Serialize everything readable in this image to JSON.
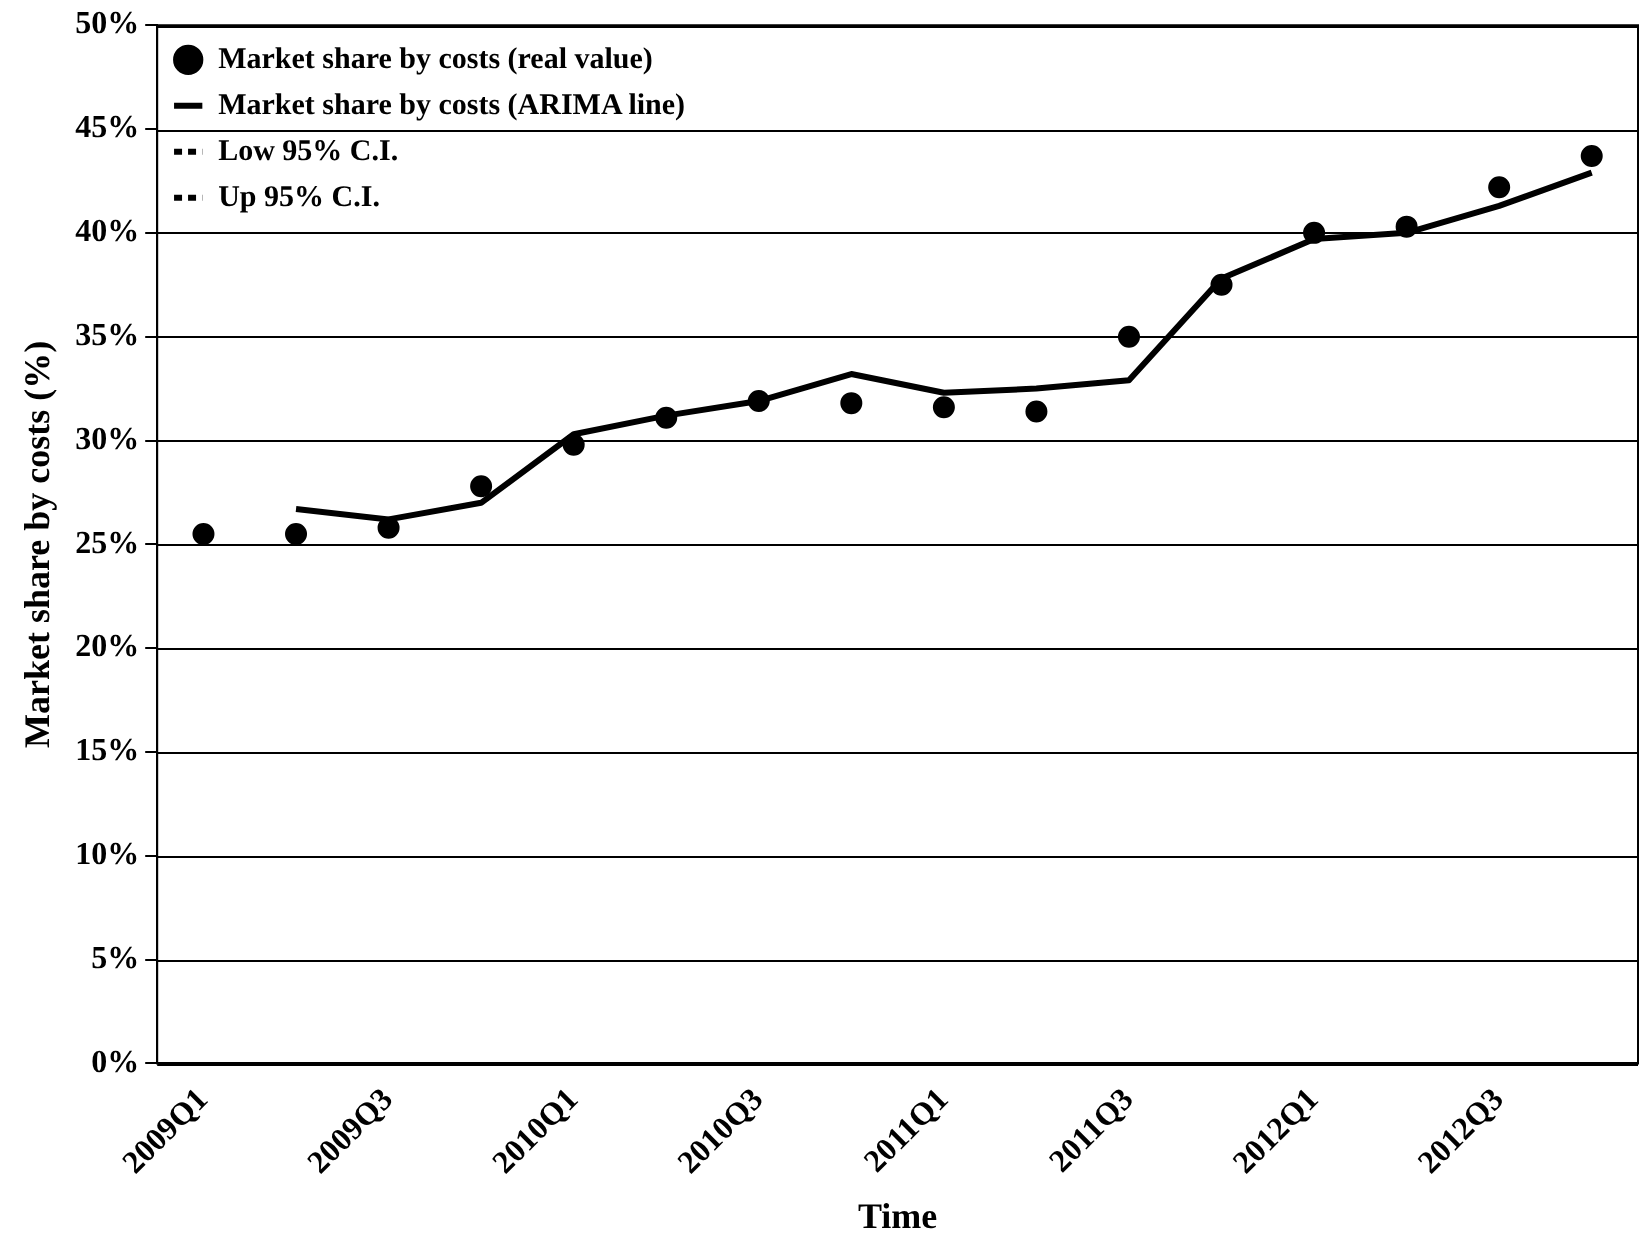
{
  "chart_data": {
    "type": "line",
    "xlabel": "Time",
    "ylabel": "Market share by costs (%)",
    "categories": [
      "2009Q1",
      null,
      "2009Q3",
      null,
      "2010Q1",
      null,
      "2010Q3",
      null,
      "2011Q1",
      null,
      "2011Q3",
      null,
      "2012Q1",
      null,
      "2012Q3",
      null
    ],
    "series": [
      {
        "name": "Market share by costs (real value)",
        "type": "scatter",
        "marker": "circle",
        "color": "#000000",
        "values": [
          25.5,
          25.5,
          25.8,
          27.8,
          29.8,
          31.1,
          31.9,
          31.8,
          31.6,
          31.4,
          35.0,
          37.5,
          40.0,
          40.3,
          42.2,
          43.7
        ]
      },
      {
        "name": "Market share by costs (ARIMA line)",
        "type": "line",
        "line_style": "solid",
        "color": "#000000",
        "values": [
          null,
          26.7,
          26.2,
          27.0,
          30.3,
          31.2,
          31.9,
          33.2,
          32.3,
          32.5,
          32.9,
          37.8,
          39.7,
          40.0,
          41.3,
          42.9
        ]
      },
      {
        "name": "Low 95% C.I.",
        "type": "line",
        "line_style": "dashed",
        "color": "#000000",
        "values": [
          null,
          null,
          null,
          null,
          null,
          null,
          null,
          null,
          null,
          null,
          null,
          null,
          null,
          null,
          null,
          null
        ]
      },
      {
        "name": "Up 95% C.I.",
        "type": "line",
        "line_style": "dashed",
        "color": "#000000",
        "values": [
          null,
          null,
          null,
          null,
          null,
          null,
          null,
          null,
          null,
          null,
          null,
          null,
          null,
          null,
          null,
          null
        ]
      }
    ],
    "ylim": [
      0,
      50
    ],
    "yticks": [
      {
        "value": 0,
        "label": "0%"
      },
      {
        "value": 5,
        "label": "5%"
      },
      {
        "value": 10,
        "label": "10%"
      },
      {
        "value": 15,
        "label": "15%"
      },
      {
        "value": 20,
        "label": "20%"
      },
      {
        "value": 25,
        "label": "25%"
      },
      {
        "value": 30,
        "label": "30%"
      },
      {
        "value": 35,
        "label": "35%"
      },
      {
        "value": 40,
        "label": "40%"
      },
      {
        "value": 45,
        "label": "45%"
      },
      {
        "value": 50,
        "label": "50%"
      }
    ],
    "grid": "y",
    "legend": "top left"
  }
}
